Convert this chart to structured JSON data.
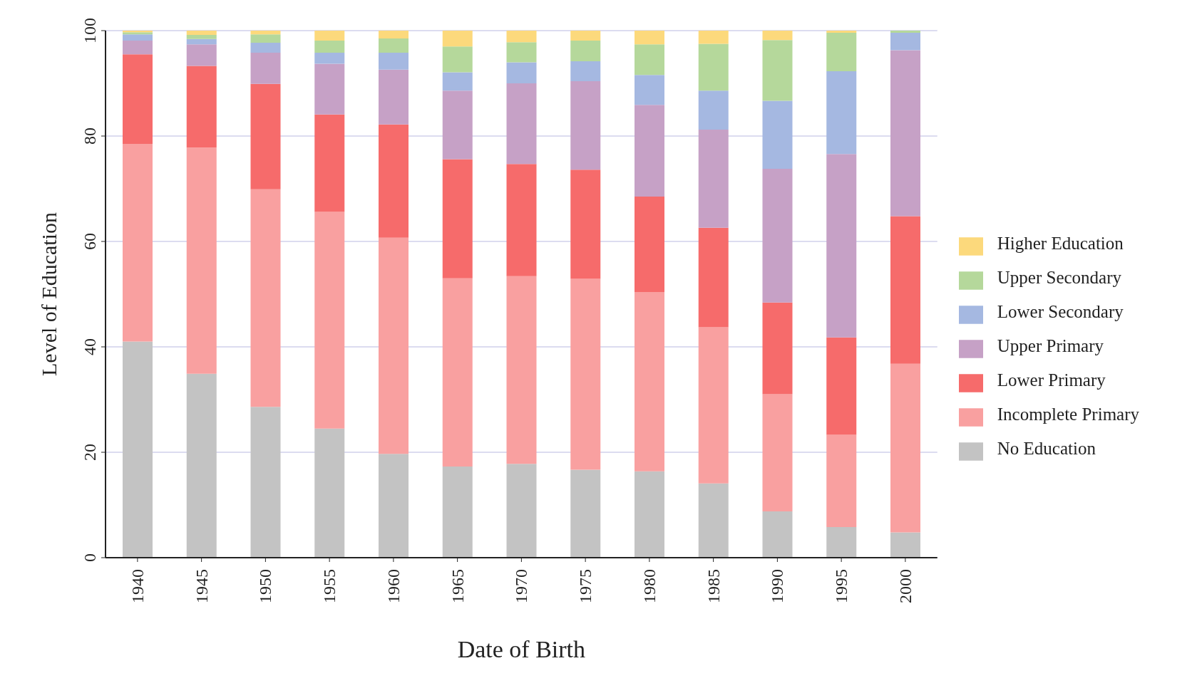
{
  "chart_data": {
    "type": "bar",
    "stacked": true,
    "xlabel": "Date of Birth",
    "ylabel": "Level of Education",
    "categories": [
      "1940",
      "1945",
      "1950",
      "1955",
      "1960",
      "1965",
      "1970",
      "1975",
      "1980",
      "1985",
      "1990",
      "1995",
      "2000"
    ],
    "series": [
      {
        "name": "No Education",
        "color": "#c3c3c3",
        "values": [
          41.0,
          34.9,
          28.6,
          24.5,
          19.7,
          17.3,
          17.8,
          16.7,
          16.4,
          14.1,
          8.8,
          5.8,
          4.8
        ]
      },
      {
        "name": "Incomplete Primary",
        "color": "#f9a0a0",
        "values": [
          37.5,
          42.9,
          41.3,
          41.1,
          41.0,
          35.7,
          35.6,
          36.2,
          34.0,
          29.6,
          22.2,
          17.5,
          32.0
        ]
      },
      {
        "name": "Lower Primary",
        "color": "#f66b6b",
        "values": [
          17.0,
          15.5,
          20.0,
          18.5,
          21.5,
          22.6,
          21.3,
          20.7,
          18.1,
          18.9,
          17.4,
          18.5,
          28.0
        ]
      },
      {
        "name": "Upper Primary",
        "color": "#c6a1c6",
        "values": [
          2.6,
          4.1,
          5.9,
          9.6,
          10.4,
          13.0,
          15.3,
          16.8,
          17.4,
          18.6,
          25.4,
          34.8,
          31.5
        ]
      },
      {
        "name": "Lower Secondary",
        "color": "#a5b8e1",
        "values": [
          1.2,
          1.0,
          1.9,
          2.1,
          3.2,
          3.5,
          4.0,
          3.8,
          5.7,
          7.4,
          12.9,
          15.7,
          3.3
        ]
      },
      {
        "name": "Upper Secondary",
        "color": "#b5d89b",
        "values": [
          0.4,
          0.8,
          1.6,
          2.3,
          2.7,
          4.9,
          3.8,
          3.9,
          5.8,
          8.9,
          11.5,
          7.3,
          0.4
        ]
      },
      {
        "name": "Higher Education",
        "color": "#fcd97c",
        "values": [
          0.3,
          0.8,
          0.7,
          1.9,
          1.5,
          3.0,
          2.2,
          1.9,
          2.6,
          2.5,
          1.8,
          0.4,
          0.0
        ]
      }
    ],
    "ylim": [
      0,
      100
    ],
    "yticks": [
      0,
      20,
      40,
      60,
      80,
      100
    ],
    "grid": "y",
    "legend": "right"
  }
}
